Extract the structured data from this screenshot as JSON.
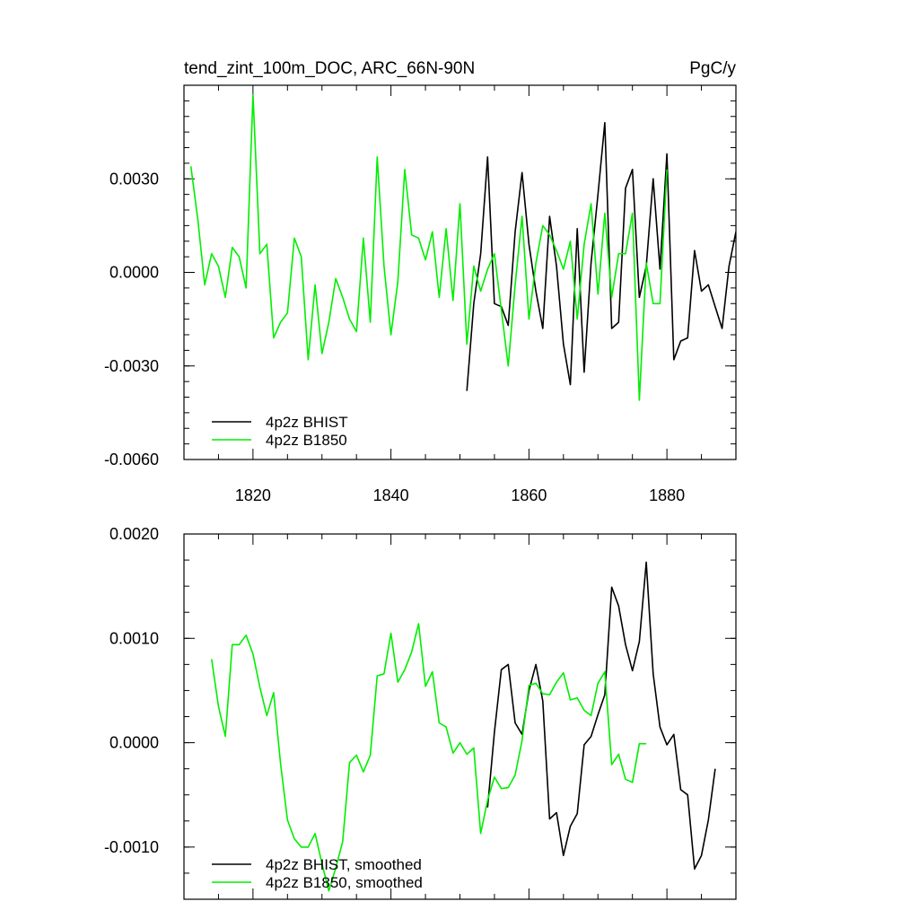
{
  "chart_data": [
    {
      "type": "line",
      "title": "tend_zint_100m_DOC, ARC_66N-90N",
      "units": "PgC/y",
      "xlim": [
        1810,
        1890
      ],
      "ylim": [
        -0.006,
        0.006
      ],
      "yticks": [
        {
          "value": -0.006,
          "label": "-0.0060"
        },
        {
          "value": -0.003,
          "label": "-0.0030"
        },
        {
          "value": 0.0,
          "label": "0.0000"
        },
        {
          "value": 0.003,
          "label": "0.0030"
        }
      ],
      "xticks": [
        {
          "value": 1820,
          "label": "1820"
        },
        {
          "value": 1840,
          "label": "1840"
        },
        {
          "value": 1860,
          "label": "1860"
        },
        {
          "value": 1880,
          "label": "1880"
        }
      ],
      "legend_position": "bottom-left",
      "series": [
        {
          "name": "4p2z BHIST",
          "color": "#000000",
          "x": [
            1851,
            1852,
            1853,
            1854,
            1855,
            1856,
            1857,
            1858,
            1859,
            1860,
            1861,
            1862,
            1863,
            1864,
            1865,
            1866,
            1867,
            1868,
            1869,
            1870,
            1871,
            1872,
            1873,
            1874,
            1875,
            1876,
            1877,
            1878,
            1879,
            1880,
            1881,
            1882,
            1883,
            1884,
            1885,
            1886,
            1887,
            1888,
            1889,
            1890
          ],
          "values": [
            -0.0038,
            -0.001,
            0.0006,
            0.0037,
            -0.001,
            -0.0011,
            -0.0017,
            0.0013,
            0.0032,
            0.0009,
            -0.0006,
            -0.0018,
            0.0018,
            0.0002,
            -0.0023,
            -0.0036,
            0.0014,
            -0.0032,
            0.0003,
            0.0025,
            0.0048,
            -0.0018,
            -0.0016,
            0.0027,
            0.0033,
            -0.0008,
            0.0002,
            0.003,
            0.0001,
            0.0038,
            -0.0028,
            -0.0022,
            -0.0021,
            0.0007,
            -0.0006,
            -0.0004,
            -0.0011,
            -0.0018,
            0.0002,
            0.0013
          ]
        },
        {
          "name": "4p2z B1850",
          "color": "#00ee00",
          "x": [
            1811,
            1812,
            1813,
            1814,
            1815,
            1816,
            1817,
            1818,
            1819,
            1820,
            1821,
            1822,
            1823,
            1824,
            1825,
            1826,
            1827,
            1828,
            1829,
            1830,
            1831,
            1832,
            1833,
            1834,
            1835,
            1836,
            1837,
            1838,
            1839,
            1840,
            1841,
            1842,
            1843,
            1844,
            1845,
            1846,
            1847,
            1848,
            1849,
            1850,
            1851,
            1852,
            1853,
            1854,
            1855,
            1856,
            1857,
            1858,
            1859,
            1860,
            1861,
            1862,
            1863,
            1864,
            1865,
            1866,
            1867,
            1868,
            1869,
            1870,
            1871,
            1872,
            1873,
            1874,
            1875,
            1876,
            1877,
            1878,
            1879,
            1880
          ],
          "values": [
            0.0034,
            0.0017,
            -0.0004,
            0.0006,
            0.0002,
            -0.0008,
            0.0008,
            0.0005,
            -0.0005,
            0.0057,
            0.0006,
            0.0009,
            -0.0021,
            -0.0016,
            -0.0013,
            0.0011,
            0.0005,
            -0.0028,
            -0.0004,
            -0.0026,
            -0.0016,
            -0.0002,
            -0.0008,
            -0.0015,
            -0.0019,
            0.0011,
            -0.0016,
            0.0037,
            0.0002,
            -0.002,
            -0.0003,
            0.0033,
            0.0012,
            0.0011,
            0.0004,
            0.0013,
            -0.0008,
            0.0014,
            -0.0009,
            0.0022,
            -0.0023,
            0.0002,
            -0.0006,
            0.0001,
            0.0006,
            -0.0012,
            -0.003,
            -0.0004,
            0.0018,
            -0.0015,
            0.0003,
            0.0015,
            0.0012,
            0.0007,
            0.0001,
            0.001,
            -0.0015,
            0.0009,
            0.0022,
            -0.0007,
            0.0019,
            -0.0008,
            0.0006,
            0.0006,
            0.0019,
            -0.0041,
            0.0003,
            -0.001,
            -0.001,
            0.0033
          ]
        }
      ]
    },
    {
      "type": "line",
      "xlim": [
        1810,
        1890
      ],
      "ylim": [
        -0.0015,
        0.002
      ],
      "yticks": [
        {
          "value": -0.001,
          "label": "-0.0010"
        },
        {
          "value": 0.0,
          "label": "0.0000"
        },
        {
          "value": 0.001,
          "label": "0.0010"
        },
        {
          "value": 0.002,
          "label": "0.0020"
        }
      ],
      "xticks": [
        {
          "value": 1820,
          "label": ""
        },
        {
          "value": 1840,
          "label": ""
        },
        {
          "value": 1860,
          "label": ""
        },
        {
          "value": 1880,
          "label": ""
        }
      ],
      "legend_position": "bottom-left",
      "series": [
        {
          "name": "4p2z BHIST, smoothed",
          "color": "#000000",
          "x": [
            1854,
            1855,
            1856,
            1857,
            1858,
            1859,
            1860,
            1861,
            1862,
            1863,
            1864,
            1865,
            1866,
            1867,
            1868,
            1869,
            1870,
            1871,
            1872,
            1873,
            1874,
            1875,
            1876,
            1877,
            1878,
            1879,
            1880,
            1881,
            1882,
            1883,
            1884,
            1885,
            1886,
            1887
          ],
          "values": [
            -0.00062,
            0.0001,
            0.0007,
            0.00075,
            0.00019,
            8e-05,
            0.0005,
            0.00075,
            0.0004,
            -0.00073,
            -0.00067,
            -0.00108,
            -0.0008,
            -0.00068,
            -2e-05,
            6e-05,
            0.00027,
            0.00046,
            0.00149,
            0.00131,
            0.00094,
            0.00069,
            0.00097,
            0.00173,
            0.00066,
            0.00015,
            -2e-05,
            8e-05,
            -0.00045,
            -0.0005,
            -0.00121,
            -0.00108,
            -0.00074,
            -0.00025
          ]
        },
        {
          "name": "4p2z B1850, smoothed",
          "color": "#00ee00",
          "x": [
            1814,
            1815,
            1816,
            1817,
            1818,
            1819,
            1820,
            1821,
            1822,
            1823,
            1824,
            1825,
            1826,
            1827,
            1828,
            1829,
            1830,
            1831,
            1832,
            1833,
            1834,
            1835,
            1836,
            1837,
            1838,
            1839,
            1840,
            1841,
            1842,
            1843,
            1844,
            1845,
            1846,
            1847,
            1848,
            1849,
            1850,
            1851,
            1852,
            1853,
            1854,
            1855,
            1856,
            1857,
            1858,
            1859,
            1860,
            1861,
            1862,
            1863,
            1864,
            1865,
            1866,
            1867,
            1868,
            1869,
            1870,
            1871,
            1872,
            1873,
            1874,
            1875,
            1876,
            1877
          ],
          "values": [
            0.0008,
            0.00035,
            6e-05,
            0.00094,
            0.00094,
            0.00103,
            0.00085,
            0.00053,
            0.00026,
            0.00048,
            -0.0002,
            -0.00074,
            -0.00092,
            -0.001,
            -0.001,
            -0.00087,
            -0.00116,
            -0.00142,
            -0.0012,
            -0.00095,
            -0.00019,
            -0.00012,
            -0.00028,
            -0.00012,
            0.00064,
            0.00066,
            0.00105,
            0.00058,
            0.0007,
            0.00087,
            0.00114,
            0.00054,
            0.00068,
            0.00019,
            0.00015,
            -0.0001,
            0.0,
            -0.00011,
            -5e-05,
            -0.00087,
            -0.00055,
            -0.00033,
            -0.00044,
            -0.00043,
            -0.00031,
            2e-05,
            0.00055,
            0.00057,
            0.00047,
            0.00046,
            0.00058,
            0.00067,
            0.00041,
            0.00043,
            0.00031,
            0.00026,
            0.00057,
            0.00068,
            -0.00021,
            -0.00011,
            -0.00035,
            -0.00038,
            -1e-05,
            -1e-05
          ]
        }
      ]
    }
  ]
}
